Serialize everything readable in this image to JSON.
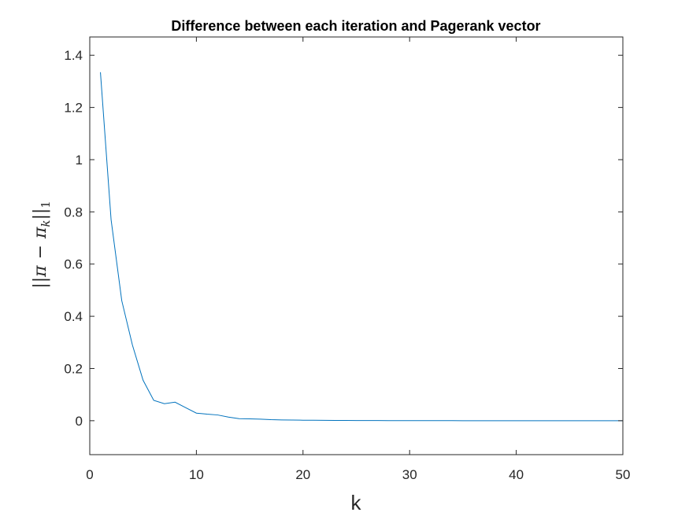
{
  "chart_data": {
    "type": "line",
    "title": "Difference between each iteration and Pagerank vector",
    "xlabel": "k",
    "ylabel": "||π − π_k||_1",
    "ylabel_parts": {
      "bars_left": "||",
      "pi": "π",
      "minus": "−",
      "pi_k": "π",
      "k_sub": "k",
      "bars_right": "||",
      "one_sub": "1"
    },
    "xlim": [
      0,
      50
    ],
    "ylim": [
      -0.13,
      1.47
    ],
    "xticks": [
      0,
      10,
      20,
      30,
      40,
      50
    ],
    "xtick_labels": [
      "0",
      "10",
      "20",
      "30",
      "40",
      "50"
    ],
    "yticks": [
      0,
      0.2,
      0.4,
      0.6,
      0.8,
      1,
      1.2,
      1.4
    ],
    "ytick_labels": [
      "0",
      "0.2",
      "0.4",
      "0.6",
      "0.8",
      "1",
      "1.2",
      "1.4"
    ],
    "grid": false,
    "series": [
      {
        "color": "#0072BD",
        "x": [
          1,
          2,
          3,
          4,
          5,
          6,
          7,
          8,
          9,
          10,
          11,
          12,
          13,
          14,
          15,
          16,
          17,
          18,
          19,
          20,
          21,
          22,
          23,
          24,
          25,
          26,
          27,
          28,
          29,
          30,
          31,
          32,
          33,
          34,
          35,
          36,
          37,
          38,
          39,
          40,
          41,
          42,
          43,
          44,
          45,
          46,
          47,
          48,
          49,
          50
        ],
        "y": [
          1.335,
          0.77,
          0.46,
          0.29,
          0.155,
          0.078,
          0.065,
          0.071,
          0.05,
          0.029,
          0.025,
          0.022,
          0.014,
          0.008,
          0.007,
          0.006,
          0.004,
          0.003,
          0.0025,
          0.002,
          0.0017,
          0.0014,
          0.0012,
          0.001,
          0.0008,
          0.0007,
          0.0006,
          0.0005,
          0.0004,
          0.0003,
          0.0003,
          0.0002,
          0.0002,
          0.0002,
          0.0001,
          0.0001,
          0.0001,
          0.0001,
          0.0001,
          0.0001,
          0,
          0,
          0,
          0,
          0,
          0,
          0,
          0,
          0,
          0
        ]
      }
    ]
  }
}
